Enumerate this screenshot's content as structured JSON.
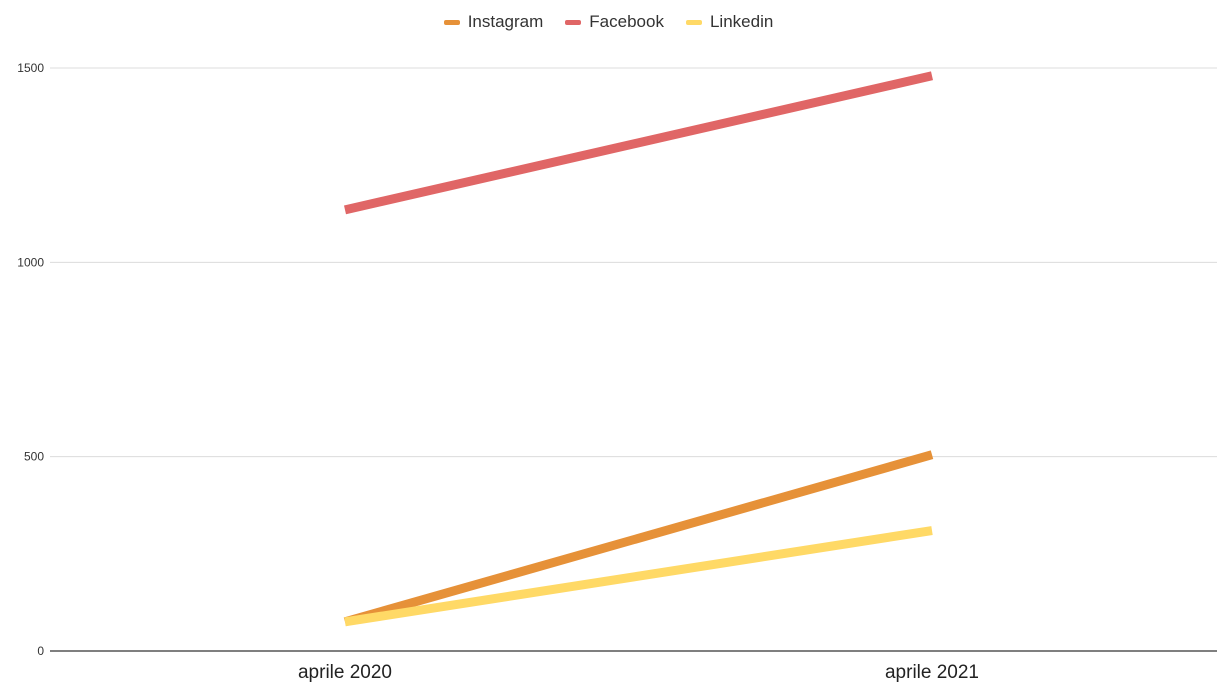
{
  "chart_data": {
    "type": "line",
    "categories": [
      "aprile 2020",
      "aprile 2021"
    ],
    "series": [
      {
        "name": "Instagram",
        "color": "#e69138",
        "values": [
          75,
          505
        ]
      },
      {
        "name": "Facebook",
        "color": "#e06666",
        "values": [
          1135,
          1480
        ]
      },
      {
        "name": "Linkedin",
        "color": "#ffd966",
        "values": [
          75,
          310
        ]
      }
    ],
    "yticks": [
      0,
      500,
      1000,
      1500
    ],
    "ylim": [
      0,
      1500
    ],
    "grid": true,
    "legend_position": "top-center",
    "title": "",
    "xlabel": "",
    "ylabel": ""
  }
}
